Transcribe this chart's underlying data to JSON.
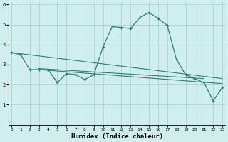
{
  "title": "",
  "xlabel": "Humidex (Indice chaleur)",
  "x": [
    0,
    1,
    2,
    3,
    4,
    5,
    6,
    7,
    8,
    9,
    10,
    11,
    12,
    13,
    14,
    15,
    16,
    17,
    18,
    19,
    20,
    21,
    22,
    23
  ],
  "main_line": [
    3.6,
    3.5,
    2.75,
    2.75,
    2.75,
    2.1,
    2.55,
    2.5,
    2.25,
    2.5,
    3.9,
    4.9,
    4.85,
    4.8,
    5.35,
    5.6,
    5.3,
    4.95,
    3.25,
    2.5,
    2.3,
    2.1,
    1.2,
    1.85
  ],
  "trend_line1_x": [
    0,
    23
  ],
  "trend_line1_y": [
    3.6,
    2.3
  ],
  "trend_line2_x": [
    3,
    23
  ],
  "trend_line2_y": [
    2.75,
    2.05
  ],
  "trend_line3_x": [
    3,
    21
  ],
  "trend_line3_y": [
    2.8,
    2.3
  ],
  "ylim": [
    0,
    6.1
  ],
  "xlim": [
    -0.3,
    23.3
  ],
  "yticks": [
    1,
    2,
    3,
    4,
    5,
    6
  ],
  "xticks": [
    0,
    1,
    2,
    3,
    4,
    5,
    6,
    7,
    8,
    9,
    10,
    11,
    12,
    13,
    14,
    15,
    16,
    17,
    18,
    19,
    20,
    21,
    22,
    23
  ],
  "line_color": "#2d7d6e",
  "bg_color": "#d0eeee",
  "grid_color": "#aad4d4",
  "fig_bg": "#d0eeee"
}
